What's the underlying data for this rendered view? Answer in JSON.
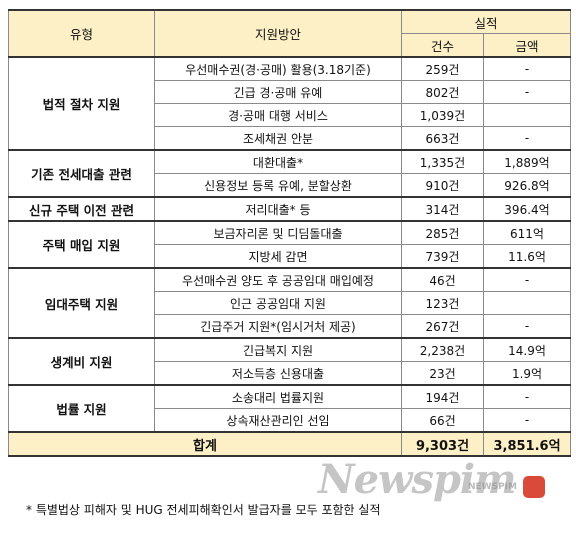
{
  "header": {
    "type": "유형",
    "plan": "지원방안",
    "result": "실적",
    "count": "건수",
    "amount": "금액"
  },
  "groups": [
    {
      "category": "법적 절차 지원",
      "rows": [
        {
          "plan": "우선매수권(경·공매) 활용(3.18기준)",
          "count": "259건",
          "amount": "-"
        },
        {
          "plan": "긴급 경·공매 유예",
          "count": "802건",
          "amount": "-"
        },
        {
          "plan": "경·공매 대행 서비스",
          "count": "1,039건",
          "amount": ""
        },
        {
          "plan": "조세채권 안분",
          "count": "663건",
          "amount": "-"
        }
      ]
    },
    {
      "category": "기존 전세대출 관련",
      "rows": [
        {
          "plan": "대환대출*",
          "count": "1,335건",
          "amount": "1,889억"
        },
        {
          "plan": "신용정보 등록 유예, 분할상환",
          "count": "910건",
          "amount": "926.8억"
        }
      ]
    },
    {
      "category": "신규 주택 이전 관련",
      "rows": [
        {
          "plan": "저리대출* 등",
          "count": "314건",
          "amount": "396.4억"
        }
      ]
    },
    {
      "category": "주택 매입 지원",
      "rows": [
        {
          "plan": "보금자리론 및 디딤돌대출",
          "count": "285건",
          "amount": "611억"
        },
        {
          "plan": "지방세 감면",
          "count": "739건",
          "amount": "11.6억"
        }
      ]
    },
    {
      "category": "임대주택 지원",
      "rows": [
        {
          "plan": "우선매수권 양도 후 공공임대 매입예정",
          "count": "46건",
          "amount": "-"
        },
        {
          "plan": "인근 공공임대 지원",
          "count": "123건",
          "amount": ""
        },
        {
          "plan": "긴급주거 지원*(임시거처 제공)",
          "count": "267건",
          "amount": "-"
        }
      ]
    },
    {
      "category": "생계비 지원",
      "rows": [
        {
          "plan": "긴급복지 지원",
          "count": "2,238건",
          "amount": "14.9억"
        },
        {
          "plan": "저소득층 신용대출",
          "count": "23건",
          "amount": "1.9억"
        }
      ]
    },
    {
      "category": "법률 지원",
      "rows": [
        {
          "plan": "소송대리 법률지원",
          "count": "194건",
          "amount": "-"
        },
        {
          "plan": "상속재산관리인 선임",
          "count": "66건",
          "amount": "-"
        }
      ]
    }
  ],
  "total": {
    "label": "합계",
    "count": "9,303건",
    "amount": "3,851.6억"
  },
  "footnote": "* 특별법상 피해자 및 HUG 전세피해확인서 발급자를 모두 포함한 실적",
  "watermark": {
    "brand": "Newspim",
    "sub": "NEWSPIM"
  }
}
